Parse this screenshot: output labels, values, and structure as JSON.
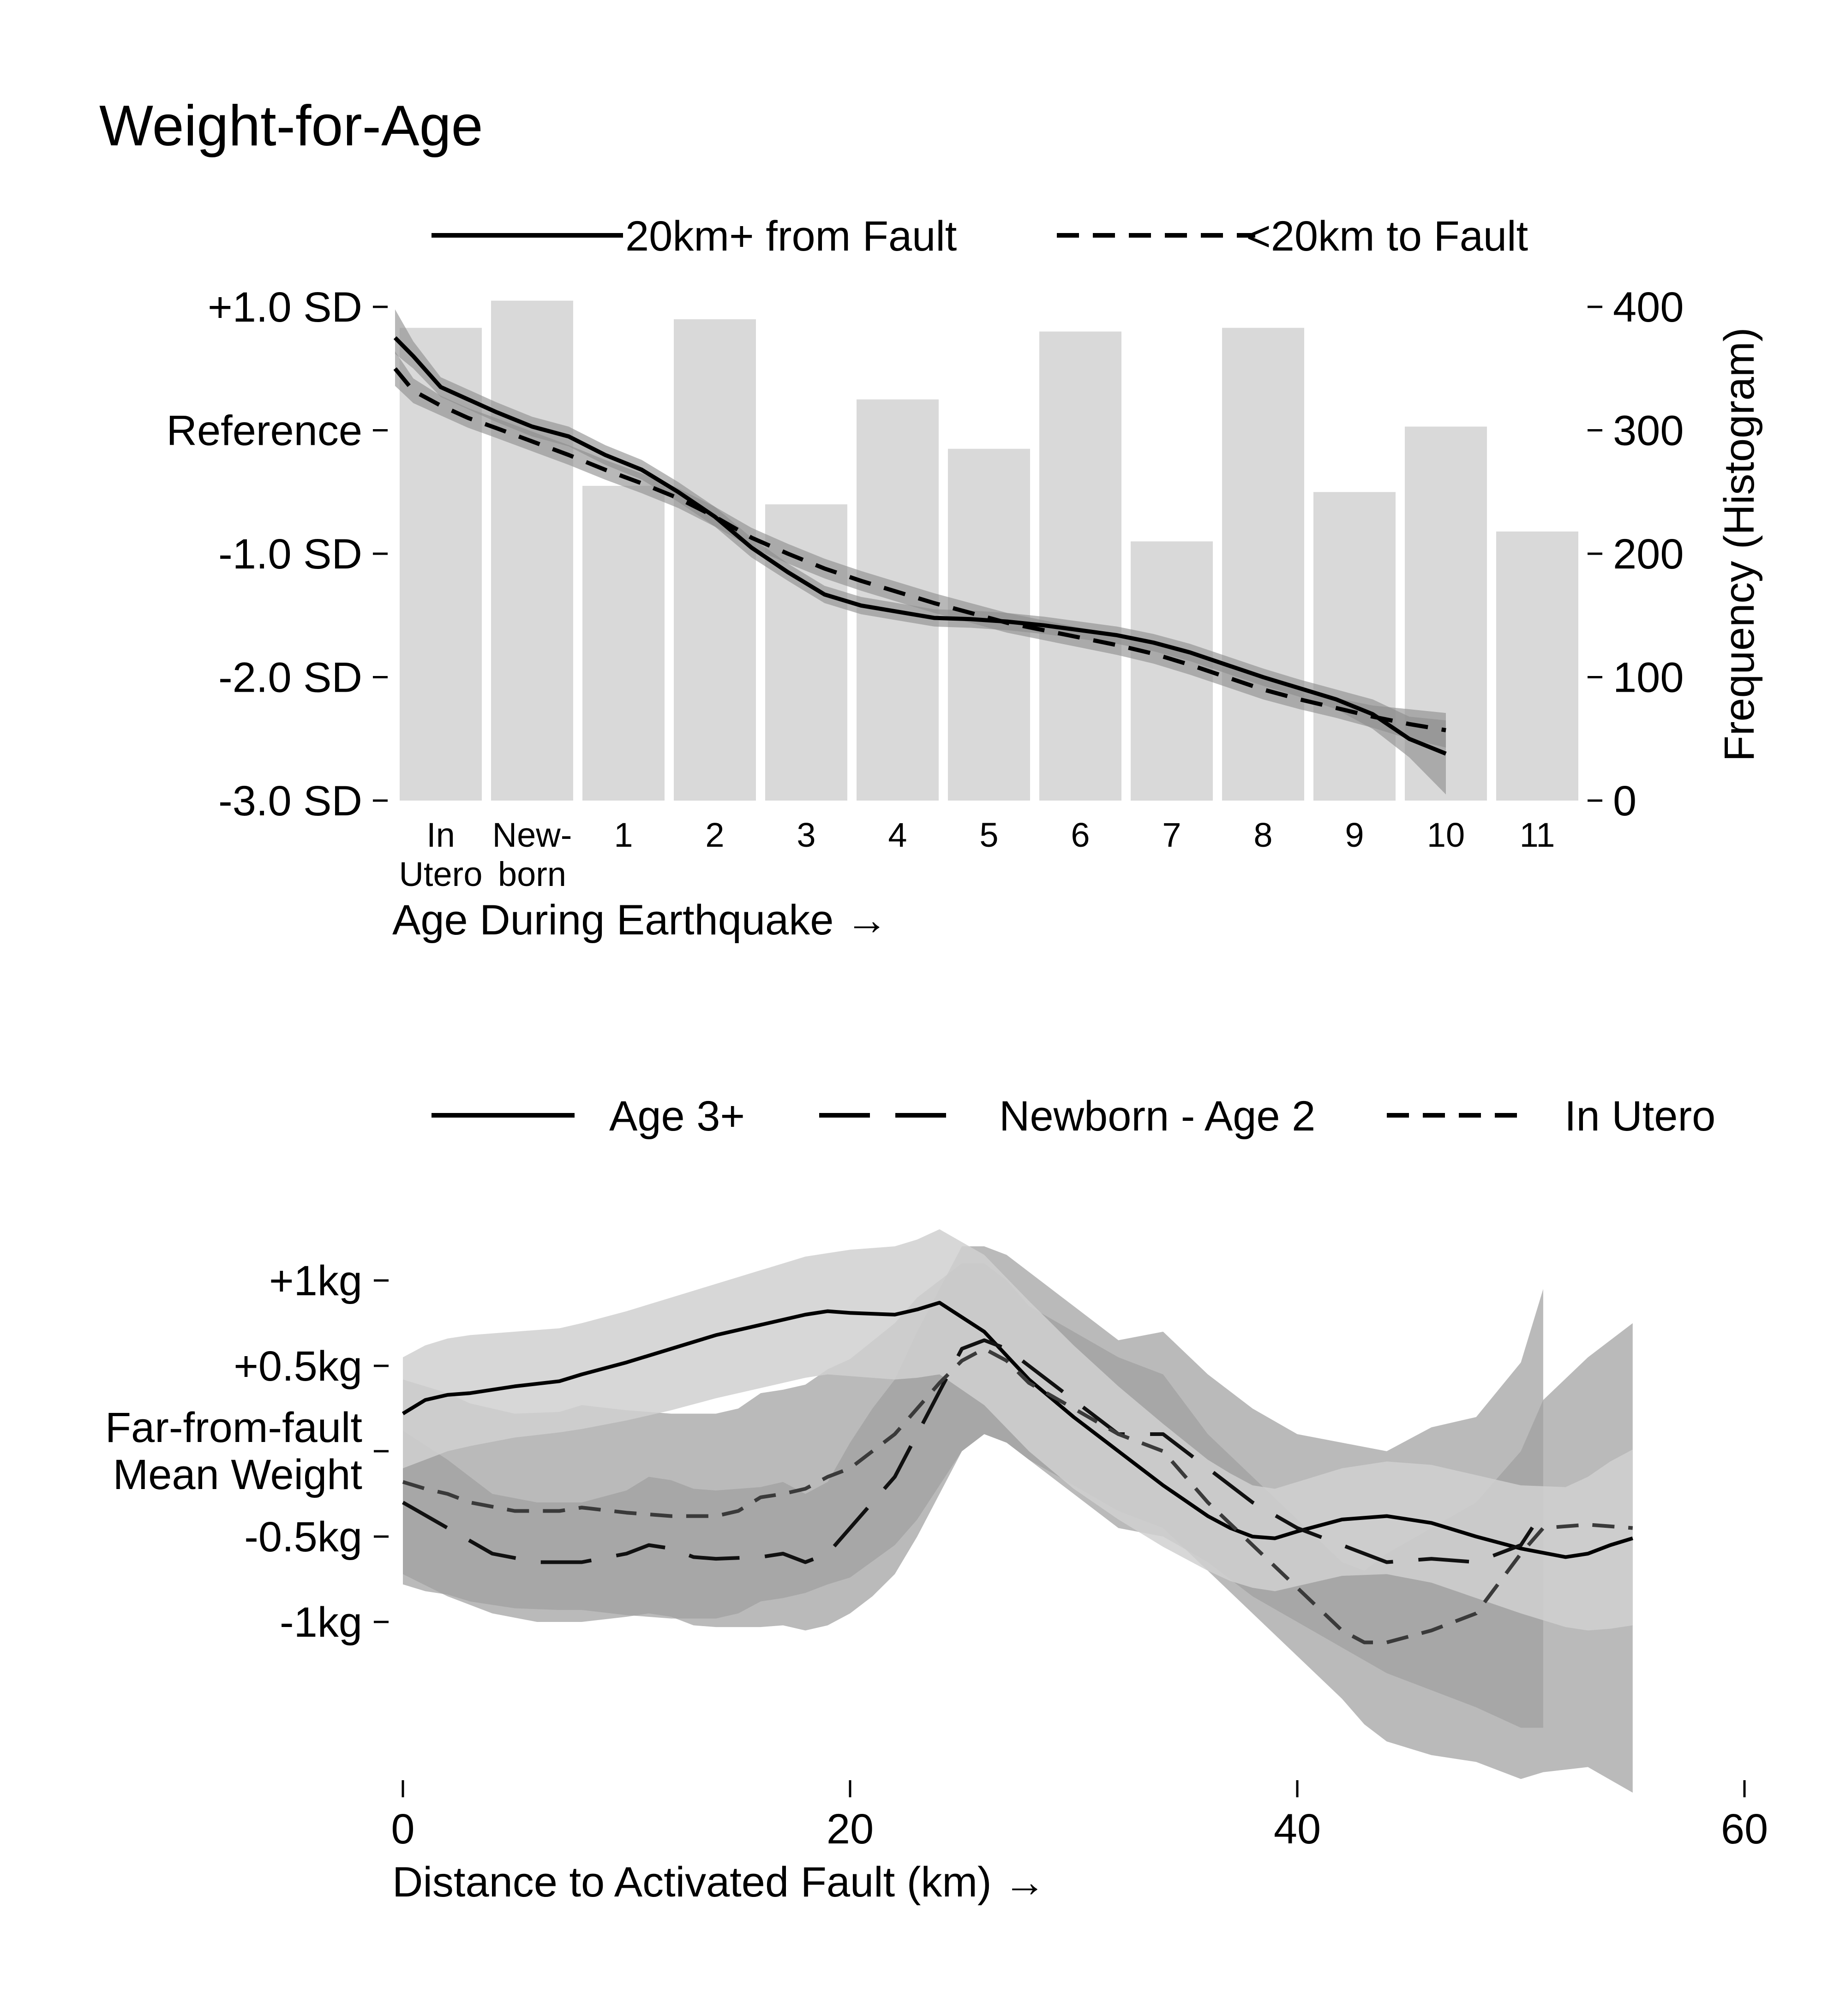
{
  "figure": {
    "title": "Weight-for-Age"
  },
  "chart_data": [
    {
      "type": "line",
      "panel": "top",
      "overlay": "bar histogram",
      "xlabel": "Age During Earthquake →",
      "ylabel": "",
      "y2label": "Frequency (Histogram)",
      "x_tick_labels": [
        {
          "line1": "In",
          "line2": "Utero"
        },
        {
          "line1": "New-",
          "line2": "born"
        },
        {
          "line1": "1",
          "line2": ""
        },
        {
          "line1": "2",
          "line2": ""
        },
        {
          "line1": "3",
          "line2": ""
        },
        {
          "line1": "4",
          "line2": ""
        },
        {
          "line1": "5",
          "line2": ""
        },
        {
          "line1": "6",
          "line2": ""
        },
        {
          "line1": "7",
          "line2": ""
        },
        {
          "line1": "8",
          "line2": ""
        },
        {
          "line1": "9",
          "line2": ""
        },
        {
          "line1": "10",
          "line2": ""
        },
        {
          "line1": "11",
          "line2": ""
        }
      ],
      "y_ticks": [
        {
          "value": 1,
          "label": "+1.0 SD"
        },
        {
          "value": 0,
          "label": "Reference"
        },
        {
          "value": -1,
          "label": "-1.0 SD"
        },
        {
          "value": -2,
          "label": "-2.0 SD"
        },
        {
          "value": -3,
          "label": "-3.0 SD"
        }
      ],
      "ylim": [
        -3,
        1
      ],
      "y2_ticks": [
        400,
        300,
        200,
        100,
        0
      ],
      "y2lim": [
        0,
        400
      ],
      "histogram": {
        "categories": [
          "In Utero",
          "Newborn",
          "1",
          "2",
          "3",
          "4",
          "5",
          "6",
          "7",
          "8",
          "9",
          "10",
          "11"
        ],
        "values": [
          383,
          405,
          255,
          390,
          240,
          325,
          285,
          380,
          210,
          383,
          250,
          303,
          218
        ],
        "color": "#d9d9d9"
      },
      "x": [
        -0.5,
        -0.3,
        0.0,
        0.3,
        0.6,
        1.0,
        1.4,
        1.8,
        2.2,
        2.6,
        3.0,
        3.4,
        3.8,
        4.2,
        4.6,
        5.0,
        5.4,
        5.8,
        6.2,
        6.6,
        7.0,
        7.4,
        7.8,
        8.2,
        8.6,
        9.0,
        9.4,
        9.8,
        10.2,
        10.6,
        11.0
      ],
      "series": [
        {
          "name": "20km+ from Fault",
          "dash": "solid",
          "values": [
            0.75,
            0.6,
            0.35,
            0.25,
            0.15,
            0.03,
            -0.05,
            -0.2,
            -0.32,
            -0.5,
            -0.7,
            -0.95,
            -1.15,
            -1.33,
            -1.42,
            -1.47,
            -1.52,
            -1.53,
            -1.55,
            -1.58,
            -1.62,
            -1.66,
            -1.72,
            -1.8,
            -1.9,
            -2.0,
            -2.09,
            -2.18,
            -2.3,
            -2.5,
            -2.62
          ],
          "ci_lower": [
            0.62,
            0.5,
            0.27,
            0.17,
            0.07,
            -0.05,
            -0.13,
            -0.28,
            -0.4,
            -0.58,
            -0.78,
            -1.03,
            -1.22,
            -1.4,
            -1.49,
            -1.54,
            -1.59,
            -1.6,
            -1.62,
            -1.65,
            -1.69,
            -1.73,
            -1.79,
            -1.87,
            -1.97,
            -2.07,
            -2.16,
            -2.26,
            -2.42,
            -2.65,
            -2.95
          ],
          "ci_upper": [
            0.98,
            0.72,
            0.43,
            0.33,
            0.23,
            0.11,
            0.03,
            -0.12,
            -0.24,
            -0.42,
            -0.62,
            -0.87,
            -1.08,
            -1.26,
            -1.35,
            -1.4,
            -1.45,
            -1.46,
            -1.48,
            -1.51,
            -1.55,
            -1.59,
            -1.65,
            -1.73,
            -1.83,
            -1.93,
            -2.02,
            -2.1,
            -2.18,
            -2.32,
            -2.35
          ]
        },
        {
          "name": "<20km to Fault",
          "dash": "dash",
          "values": [
            0.5,
            0.32,
            0.2,
            0.1,
            0.02,
            -0.09,
            -0.2,
            -0.32,
            -0.43,
            -0.55,
            -0.7,
            -0.87,
            -1.0,
            -1.12,
            -1.22,
            -1.31,
            -1.4,
            -1.48,
            -1.56,
            -1.62,
            -1.68,
            -1.74,
            -1.81,
            -1.9,
            -2.0,
            -2.1,
            -2.18,
            -2.25,
            -2.32,
            -2.38,
            -2.43
          ],
          "ci_lower": [
            0.36,
            0.22,
            0.12,
            0.02,
            -0.06,
            -0.17,
            -0.28,
            -0.4,
            -0.51,
            -0.63,
            -0.78,
            -0.95,
            -1.08,
            -1.2,
            -1.3,
            -1.39,
            -1.48,
            -1.56,
            -1.64,
            -1.7,
            -1.76,
            -1.82,
            -1.89,
            -1.98,
            -2.08,
            -2.18,
            -2.26,
            -2.33,
            -2.41,
            -2.5,
            -2.57
          ],
          "ci_upper": [
            0.64,
            0.42,
            0.28,
            0.18,
            0.1,
            -0.01,
            -0.12,
            -0.24,
            -0.35,
            -0.47,
            -0.62,
            -0.79,
            -0.92,
            -1.04,
            -1.14,
            -1.23,
            -1.32,
            -1.4,
            -1.48,
            -1.54,
            -1.6,
            -1.66,
            -1.73,
            -1.82,
            -1.92,
            -2.02,
            -2.1,
            -2.17,
            -2.23,
            -2.26,
            -2.29
          ]
        }
      ],
      "band_color": "#8c8c8c",
      "grid": false,
      "legend_position": "top"
    },
    {
      "type": "line",
      "panel": "bottom",
      "xlabel": "Distance to Activated Fault (km) →",
      "ylabel": "",
      "x_ticks": [
        0,
        20,
        40,
        60
      ],
      "xlim": [
        0,
        60
      ],
      "y_ticks": [
        {
          "value": 1,
          "label": "+1kg"
        },
        {
          "value": 0.5,
          "label": "+0.5kg"
        },
        {
          "value": 0,
          "label": "Far-from-fault|Mean Weight"
        },
        {
          "value": -0.5,
          "label": "-0.5kg"
        },
        {
          "value": -1,
          "label": "-1kg"
        }
      ],
      "ylim": [
        -2.05,
        2.1
      ],
      "series": [
        {
          "name": "Age 3+",
          "dash": "solid",
          "x": [
            0,
            1,
            2,
            3,
            5,
            7,
            8,
            10,
            12,
            14,
            16,
            18,
            19,
            20,
            22,
            23,
            24,
            26,
            28,
            30,
            32,
            34,
            36,
            37,
            38,
            39,
            40,
            42,
            44,
            46,
            48,
            50,
            52,
            53,
            54,
            55
          ],
          "values": [
            0.22,
            0.3,
            0.33,
            0.34,
            0.38,
            0.41,
            0.45,
            0.52,
            0.6,
            0.68,
            0.74,
            0.8,
            0.82,
            0.81,
            0.8,
            0.83,
            0.87,
            0.7,
            0.42,
            0.2,
            0.0,
            -0.2,
            -0.38,
            -0.45,
            -0.5,
            -0.51,
            -0.47,
            -0.4,
            -0.38,
            -0.42,
            -0.5,
            -0.57,
            -0.62,
            -0.6,
            -0.55,
            -0.51
          ],
          "ci_lower": [
            -0.1,
            -0.05,
            0.0,
            0.03,
            0.08,
            0.11,
            0.13,
            0.18,
            0.24,
            0.31,
            0.37,
            0.43,
            0.45,
            0.44,
            0.42,
            0.43,
            0.45,
            0.27,
            0.0,
            -0.22,
            -0.4,
            -0.56,
            -0.7,
            -0.76,
            -0.8,
            -0.82,
            -0.79,
            -0.73,
            -0.72,
            -0.77,
            -0.86,
            -0.95,
            -1.03,
            -1.05,
            -1.04,
            -1.02
          ],
          "ci_upper": [
            0.55,
            0.62,
            0.66,
            0.68,
            0.7,
            0.72,
            0.75,
            0.82,
            0.9,
            0.98,
            1.06,
            1.14,
            1.16,
            1.18,
            1.2,
            1.24,
            1.3,
            1.15,
            0.88,
            0.62,
            0.38,
            0.16,
            -0.05,
            -0.13,
            -0.2,
            -0.22,
            -0.18,
            -0.1,
            -0.06,
            -0.08,
            -0.14,
            -0.2,
            -0.21,
            -0.15,
            -0.06,
            0.01
          ]
        },
        {
          "name": "Newborn - Age 2",
          "dash": "longdash",
          "x": [
            0,
            2,
            4,
            6,
            8,
            10,
            11,
            12,
            13,
            14,
            16,
            17,
            18,
            19,
            20,
            21,
            22,
            23,
            24,
            25,
            26,
            27,
            28,
            30,
            32,
            34,
            36,
            38,
            40,
            42,
            44,
            46,
            48,
            50,
            51
          ],
          "values": [
            -0.3,
            -0.45,
            -0.6,
            -0.65,
            -0.65,
            -0.6,
            -0.55,
            -0.57,
            -0.62,
            -0.63,
            -0.62,
            -0.6,
            -0.65,
            -0.6,
            -0.45,
            -0.3,
            -0.15,
            0.1,
            0.35,
            0.6,
            0.65,
            0.6,
            0.5,
            0.3,
            0.1,
            0.1,
            -0.1,
            -0.3,
            -0.45,
            -0.55,
            -0.65,
            -0.63,
            -0.65,
            -0.55,
            -0.35
          ],
          "ci_lower": [
            -0.72,
            -0.85,
            -0.95,
            -1.0,
            -1.0,
            -0.97,
            -0.95,
            -0.97,
            -1.02,
            -1.03,
            -1.03,
            -1.02,
            -1.05,
            -1.02,
            -0.95,
            -0.85,
            -0.72,
            -0.5,
            -0.25,
            0.0,
            0.1,
            0.05,
            -0.05,
            -0.25,
            -0.45,
            -0.5,
            -0.65,
            -0.85,
            -1.0,
            -1.15,
            -1.3,
            -1.4,
            -1.5,
            -1.62,
            -1.62
          ],
          "ci_upper": [
            0.12,
            -0.05,
            -0.25,
            -0.3,
            -0.3,
            -0.23,
            -0.15,
            -0.17,
            -0.22,
            -0.23,
            -0.21,
            -0.18,
            -0.25,
            -0.18,
            0.05,
            0.25,
            0.42,
            0.7,
            0.95,
            1.2,
            1.2,
            1.15,
            1.05,
            0.85,
            0.65,
            0.7,
            0.45,
            0.25,
            0.1,
            0.05,
            0.0,
            0.14,
            0.2,
            0.52,
            0.95
          ]
        },
        {
          "name": "In Utero",
          "dash": "dash",
          "x": [
            0,
            1,
            2,
            3,
            5,
            7,
            8,
            10,
            12,
            14,
            15,
            16,
            17,
            18,
            19,
            20,
            22,
            23,
            24,
            25,
            26,
            27,
            28,
            30,
            32,
            34,
            36,
            38,
            40,
            42,
            43,
            44,
            46,
            48,
            50,
            51,
            53,
            55
          ],
          "values": [
            -0.18,
            -0.22,
            -0.25,
            -0.3,
            -0.35,
            -0.35,
            -0.33,
            -0.36,
            -0.38,
            -0.38,
            -0.35,
            -0.27,
            -0.25,
            -0.22,
            -0.15,
            -0.1,
            0.1,
            0.25,
            0.4,
            0.53,
            0.6,
            0.53,
            0.4,
            0.25,
            0.1,
            0.0,
            -0.3,
            -0.55,
            -0.8,
            -1.05,
            -1.12,
            -1.12,
            -1.05,
            -0.95,
            -0.6,
            -0.45,
            -0.43,
            -0.45
          ],
          "ci_lower": [
            -0.78,
            -0.82,
            -0.84,
            -0.88,
            -0.92,
            -0.93,
            -0.93,
            -0.96,
            -0.98,
            -0.98,
            -0.95,
            -0.88,
            -0.86,
            -0.83,
            -0.78,
            -0.74,
            -0.55,
            -0.4,
            -0.2,
            0.0,
            0.1,
            0.05,
            -0.05,
            -0.2,
            -0.35,
            -0.45,
            -0.7,
            -0.95,
            -1.2,
            -1.45,
            -1.6,
            -1.7,
            -1.78,
            -1.82,
            -1.92,
            -1.88,
            -1.85,
            -2.0
          ],
          "ci_upper": [
            0.42,
            0.38,
            0.34,
            0.28,
            0.22,
            0.23,
            0.27,
            0.24,
            0.22,
            0.22,
            0.25,
            0.34,
            0.36,
            0.39,
            0.48,
            0.54,
            0.75,
            0.9,
            1.0,
            1.1,
            1.1,
            1.0,
            0.85,
            0.7,
            0.55,
            0.45,
            0.1,
            -0.15,
            -0.4,
            -0.65,
            -0.7,
            -0.6,
            -0.45,
            -0.3,
            0.0,
            0.3,
            0.55,
            0.75
          ]
        }
      ],
      "band_colors": [
        "#d0d0d0",
        "#a0a0a0",
        "#a0a0a0"
      ],
      "grid": false,
      "legend_position": "top"
    }
  ]
}
